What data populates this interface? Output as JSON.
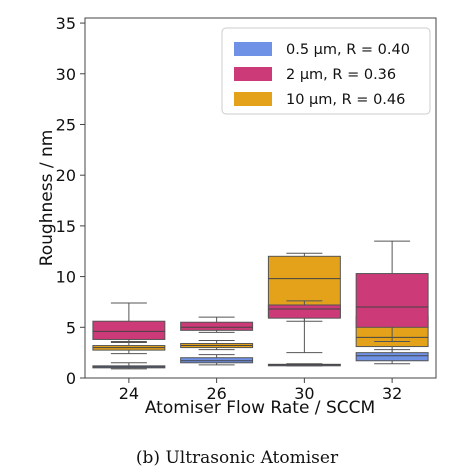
{
  "chart_data": {
    "type": "box",
    "xlabel": "Atomiser Flow Rate / SCCM",
    "ylabel": "Roughness / nm",
    "categories": [
      "24",
      "26",
      "30",
      "32"
    ],
    "ylim": [
      0,
      35.5
    ],
    "yticks": [
      0,
      5,
      10,
      15,
      20,
      25,
      30,
      35
    ],
    "grid": false,
    "legend_position": "top-right",
    "series": [
      {
        "name": "10 μm, R = 0.46",
        "color": "#e3a21a",
        "boxes": [
          {
            "whislo": 2.4,
            "q1": 2.75,
            "med": 3.0,
            "q3": 3.2,
            "whishi": 3.5
          },
          {
            "whislo": 2.8,
            "q1": 3.0,
            "med": 3.2,
            "q3": 3.4,
            "whishi": 3.7
          },
          {
            "whislo": 2.5,
            "q1": 6.0,
            "med": 9.8,
            "q3": 12.0,
            "whishi": 12.3
          },
          {
            "whislo": 2.2,
            "q1": 3.1,
            "med": 4.0,
            "q3": 6.1,
            "whishi": 8.0
          }
        ]
      },
      {
        "name": "2 μm, R = 0.36",
        "color": "#cc3a77",
        "boxes": [
          {
            "whislo": 3.6,
            "q1": 3.8,
            "med": 4.6,
            "q3": 5.6,
            "whishi": 7.4
          },
          {
            "whislo": 4.5,
            "q1": 4.7,
            "med": 5.0,
            "q3": 5.5,
            "whishi": 6.0
          },
          {
            "whislo": 5.6,
            "q1": 5.9,
            "med": 6.8,
            "q3": 7.2,
            "whishi": 7.6
          },
          {
            "whislo": 3.6,
            "q1": 5.0,
            "med": 7.0,
            "q3": 10.3,
            "whishi": 13.5
          }
        ]
      },
      {
        "name": "0.5 μm, R = 0.40",
        "color": "#6f92e6",
        "boxes": [
          {
            "whislo": 0.9,
            "q1": 1.0,
            "med": 1.1,
            "q3": 1.2,
            "whishi": 1.5
          },
          {
            "whislo": 1.3,
            "q1": 1.5,
            "med": 1.7,
            "q3": 2.0,
            "whishi": 2.3
          },
          {
            "whislo": 1.2,
            "q1": 1.25,
            "med": 1.3,
            "q3": 1.35,
            "whishi": 1.4
          },
          {
            "whislo": 1.4,
            "q1": 1.7,
            "med": 2.2,
            "q3": 2.5,
            "whishi": 2.8
          }
        ]
      }
    ],
    "legend": [
      {
        "label": "0.5 μm, R = 0.40",
        "color": "#6f92e6"
      },
      {
        "label": "2 μm, R = 0.36",
        "color": "#cc3a77"
      },
      {
        "label": "10 μm, R = 0.46",
        "color": "#e3a21a"
      }
    ]
  },
  "caption": "(b) Ultrasonic Atomiser"
}
